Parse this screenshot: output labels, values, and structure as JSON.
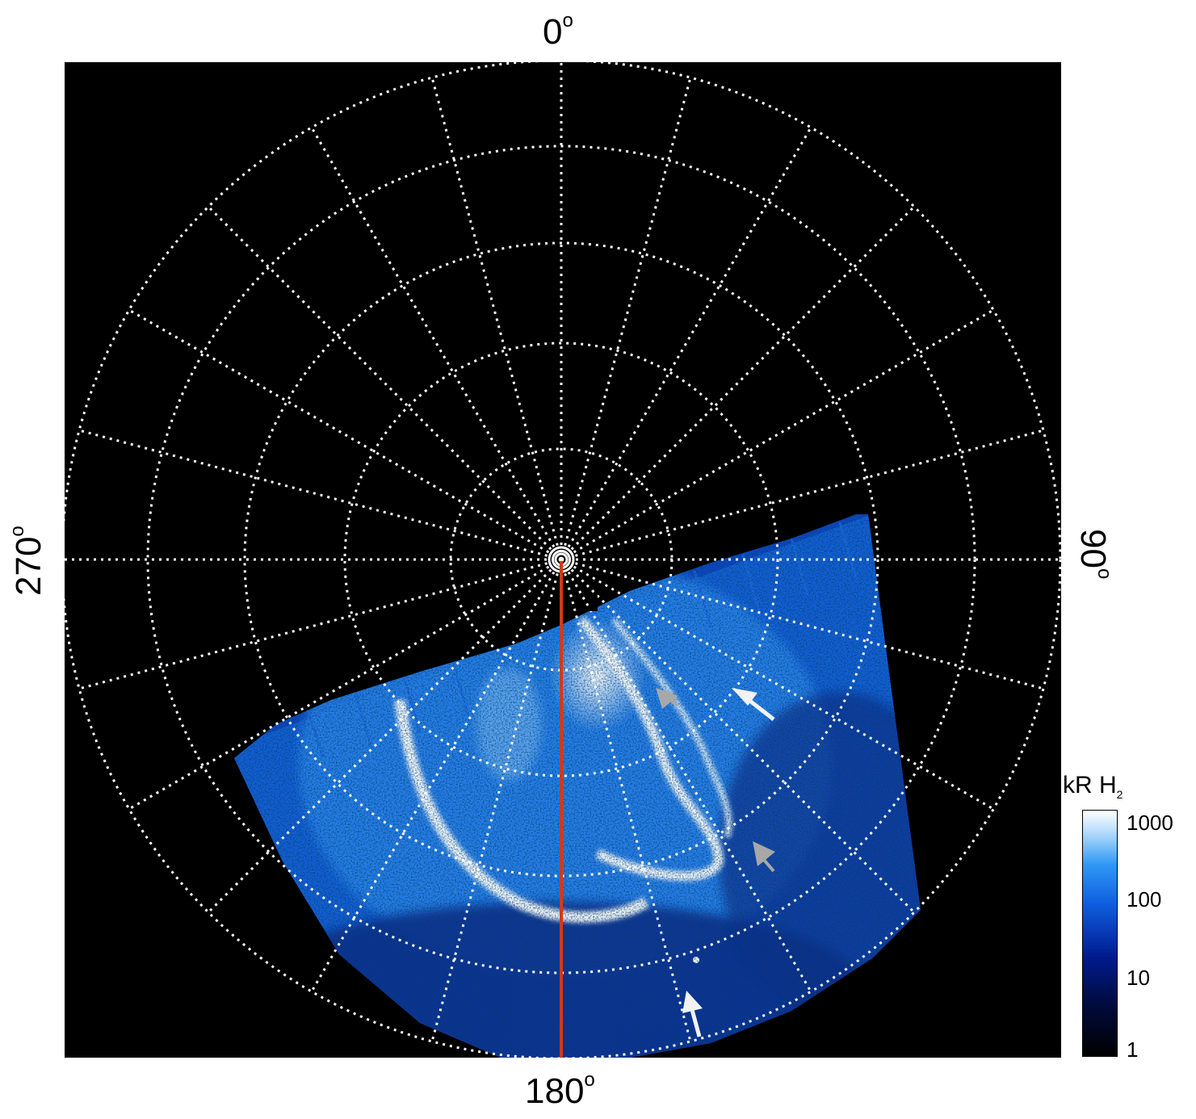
{
  "compass": {
    "top": "0",
    "bottom": "180",
    "left": "270",
    "right": "90",
    "degree_symbol": "o"
  },
  "colorbar": {
    "unit_prefix": "kR H",
    "unit_subscript": "2",
    "ticks": [
      "1000",
      "100",
      "10",
      "1"
    ]
  },
  "colors": {
    "background": "#000000",
    "grid": "#ffffff",
    "meridian": "#d03a1a",
    "emission_low": "#001a8c",
    "emission_mid": "#1e78f0",
    "emission_high": "#ffffff",
    "arrow_white": "#f2f2f2",
    "arrow_gray": "#a8a8a8"
  }
}
